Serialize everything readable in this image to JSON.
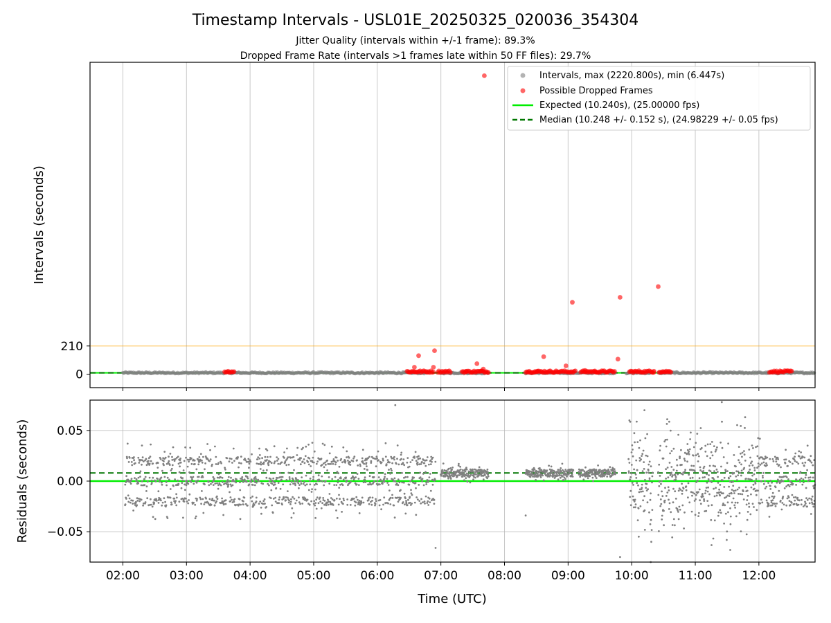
{
  "title": "Timestamp Intervals - USL01E_20250325_020036_354304",
  "subtitle_lines": [
    "Jitter Quality (intervals within +/-1 frame): 89.3%",
    "Dropped Frame Rate (intervals >1 frames late within 50 FF files): 29.7%"
  ],
  "colors": {
    "intervals": "#808080",
    "dropped": "#ff0000",
    "expected": "#00ee00",
    "median": "#007700",
    "threshold": "#ffa500",
    "grid": "#b0b0b0"
  },
  "chart_data": [
    {
      "type": "scatter",
      "panel": "top",
      "xlabel": "",
      "ylabel": "Intervals (seconds)",
      "xlim": [
        "01:29",
        "12:53"
      ],
      "ylim": [
        -100,
        2320
      ],
      "yticks": [
        0,
        210
      ],
      "ytick_labels": [
        "0",
        "210"
      ],
      "grid": "x",
      "legend_position": "upper right",
      "legend": [
        {
          "label": "Intervals, max (2220.800s), min (6.447s)",
          "kind": "marker",
          "color": "#808080"
        },
        {
          "label": "Possible Dropped Frames",
          "kind": "marker",
          "color": "#ff0000"
        },
        {
          "label": "Expected (10.240s), (25.00000 fps)",
          "kind": "solid",
          "color": "#00ee00"
        },
        {
          "label": "Median (10.248 +/- 0.152 s), (24.98229 +/- 0.05 fps)",
          "kind": "dashed",
          "color": "#007700"
        }
      ],
      "intervals_range": {
        "min": 6.447,
        "max": 2220.8
      },
      "expected": 10.24,
      "median": 10.248,
      "threshold": 210,
      "recording_segments": [
        [
          "02:00",
          "06:50"
        ],
        [
          "07:00",
          "07:45"
        ],
        [
          "08:20",
          "09:10"
        ],
        [
          "09:10",
          "09:45"
        ],
        [
          "09:55",
          "10:20"
        ],
        [
          "10:25",
          "12:53"
        ]
      ],
      "dropped_frames": [
        {
          "time": "07:41",
          "value": 2220
        },
        {
          "time": "10:25",
          "value": 652
        },
        {
          "time": "09:49",
          "value": 572
        },
        {
          "time": "09:04",
          "value": 535
        },
        {
          "time": "06:54",
          "value": 175
        },
        {
          "time": "06:39",
          "value": 138
        },
        {
          "time": "08:37",
          "value": 130
        },
        {
          "time": "09:47",
          "value": 112
        },
        {
          "time": "07:34",
          "value": 78
        },
        {
          "time": "08:58",
          "value": 62
        },
        {
          "time": "06:35",
          "value": 52
        },
        {
          "time": "06:53",
          "value": 52
        },
        {
          "time": "07:40",
          "value": 38
        },
        {
          "time": "09:16",
          "value": 28
        },
        {
          "time": "07:24",
          "value": 22
        },
        {
          "time": "09:26",
          "value": 18
        },
        {
          "time": "10:21",
          "value": 22
        },
        {
          "time": "08:31",
          "value": 20
        },
        {
          "time": "07:38",
          "value": 24
        }
      ],
      "dropped_clusters": [
        [
          "03:36",
          "03:46"
        ],
        [
          "06:28",
          "06:54"
        ],
        [
          "06:57",
          "07:10"
        ],
        [
          "07:20",
          "07:46"
        ],
        [
          "08:20",
          "08:30"
        ],
        [
          "08:30",
          "08:52"
        ],
        [
          "08:52",
          "09:08"
        ],
        [
          "09:12",
          "09:34"
        ],
        [
          "09:34",
          "09:45"
        ],
        [
          "09:58",
          "10:22"
        ],
        [
          "10:26",
          "10:38"
        ],
        [
          "12:10",
          "12:32"
        ]
      ]
    },
    {
      "type": "scatter",
      "panel": "bottom",
      "xlabel": "Time (UTC)",
      "ylabel": "Residuals (seconds)",
      "xlim": [
        "01:29",
        "12:53"
      ],
      "ylim": [
        -0.08,
        0.08
      ],
      "yticks": [
        -0.05,
        0.0,
        0.05
      ],
      "ytick_labels": [
        "−0.05",
        "0.00",
        "0.05"
      ],
      "xticks": [
        "02:00",
        "03:00",
        "04:00",
        "05:00",
        "06:00",
        "07:00",
        "08:00",
        "09:00",
        "10:00",
        "11:00",
        "12:00",
        "13:00"
      ],
      "xtick_labels": [
        "02:00",
        "03:00",
        "04:00",
        "05:00",
        "06:00",
        "07:00",
        "08:00",
        "09:00",
        "10:00",
        "11:00",
        "12:00"
      ],
      "grid": "both",
      "expected_residual": 0.0,
      "median_residual": 0.008,
      "residual_segments": [
        {
          "from": "02:02",
          "to": "06:55",
          "levels": [
            0.02,
            0.0,
            -0.02
          ],
          "spread": 0.024
        },
        {
          "from": "07:00",
          "to": "07:45",
          "levels": [
            0.01,
            0.006
          ],
          "spread": 0.01
        },
        {
          "from": "08:20",
          "to": "09:05",
          "levels": [
            0.01,
            0.006
          ],
          "spread": 0.01
        },
        {
          "from": "09:10",
          "to": "09:45",
          "levels": [
            0.01,
            0.006
          ],
          "spread": 0.01
        },
        {
          "from": "09:57",
          "to": "10:20",
          "levels": [
            0.02,
            0.0,
            -0.02
          ],
          "spread": 0.05
        },
        {
          "from": "10:25",
          "to": "12:00",
          "levels": [
            0.02,
            0.0,
            -0.02
          ],
          "spread": 0.06
        },
        {
          "from": "12:00",
          "to": "12:53",
          "levels": [
            0.02,
            0.0,
            -0.02
          ],
          "spread": 0.03
        }
      ],
      "outliers": [
        {
          "time": "06:17",
          "value": 0.075
        },
        {
          "time": "06:55",
          "value": -0.066
        },
        {
          "time": "08:20",
          "value": -0.034
        },
        {
          "time": "09:49",
          "value": -0.075
        },
        {
          "time": "10:12",
          "value": 0.07
        },
        {
          "time": "10:18",
          "value": -0.08
        },
        {
          "time": "11:25",
          "value": 0.078
        },
        {
          "time": "11:33",
          "value": -0.068
        }
      ]
    }
  ]
}
